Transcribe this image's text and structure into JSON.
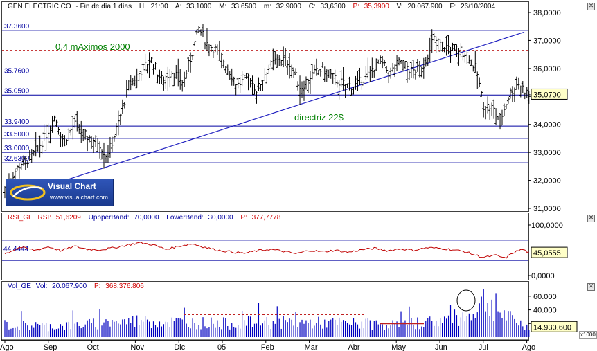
{
  "price_pane": {
    "header": {
      "security": "GEN ELECTRIC CO",
      "period": "Fin de día 1 días",
      "time_label": "H:",
      "time_value": "21:00",
      "open_label": "A:",
      "open_value": "33,1000",
      "high_label": "M:",
      "high_value": "33,6500",
      "low_label": "m:",
      "low_value": "32,9000",
      "close_label": "C:",
      "close_value": "33,6300",
      "p_label": "P:",
      "p_value": "35,3900",
      "vol_label": "V:",
      "vol_value": "20.067.900",
      "date_label": "F:",
      "date_value": "26/10/2004"
    },
    "annotation_max": "0.4 mAximos 2000",
    "annotation_trend": "directriz 22$",
    "last_price_tag": "35,0700"
  },
  "rsi_pane": {
    "header": {
      "name": "RSI_GE",
      "rsi_label": "RSI:",
      "rsi_value": "51,6209",
      "upper_label": "UppperBand:",
      "upper_value": "70,0000",
      "lower_label": "LowerBand:",
      "lower_value": "30,0000",
      "p_label": "P:",
      "p_value": "377,7778"
    },
    "last_value_tag": "45,0555"
  },
  "vol_pane": {
    "header": {
      "name": "Vol_GE",
      "vol_label": "Vol:",
      "vol_value": "20.067.900",
      "p_label": "P:",
      "p_value": "368.376.806"
    },
    "last_value_tag": "14.930.600",
    "unit_tag": "x1000"
  },
  "logo": {
    "title": "Visual Chart",
    "url": "www.visualchart.com"
  },
  "close_symbol": "✕",
  "colors": {
    "price_bars": "#000000",
    "levels": "#0000a0",
    "trendline": "#2020c0",
    "max_line": "#c02020",
    "annotation": "#008000",
    "rsi_line": "#c00000",
    "rsi_mid": "#00a000",
    "volume_bars": "#0000c0"
  },
  "chart_data": [
    {
      "type": "ohlc",
      "title": "GEN ELECTRIC CO",
      "x_axis_labels": [
        "Ago",
        "Sep",
        "Oct",
        "Nov",
        "Dic",
        "05",
        "Feb",
        "Mar",
        "Abr",
        "May",
        "Jun",
        "Jul",
        "Ago"
      ],
      "y_ticks": [
        "31,0000",
        "32,0000",
        "33,0000",
        "34,0000",
        "35,0000",
        "36,0000",
        "37,0000",
        "38,0000"
      ],
      "ylim": [
        31.0,
        38.0
      ],
      "horizontal_levels": [
        {
          "label": "37.3600",
          "value": 37.36
        },
        {
          "label": "35.7600",
          "value": 35.76
        },
        {
          "label": "35.0500",
          "value": 35.05
        },
        {
          "label": "33.9400",
          "value": 33.94
        },
        {
          "label": "33.5000",
          "value": 33.5
        },
        {
          "label": "33.0000",
          "value": 33.0
        },
        {
          "label": "32.6300",
          "value": 32.63
        }
      ],
      "max_line_value": 36.65,
      "trendline": {
        "start": [
          "Ago",
          32.05
        ],
        "end": [
          "Ago",
          37.3
        ]
      },
      "trend_points": [
        {
          "m": 0.0,
          "v": 31.75
        },
        {
          "m": 0.35,
          "v": 32.6
        },
        {
          "m": 0.6,
          "v": 32.8
        },
        {
          "m": 0.9,
          "v": 33.5
        },
        {
          "m": 1.15,
          "v": 34.3
        },
        {
          "m": 1.35,
          "v": 33.4
        },
        {
          "m": 1.6,
          "v": 34.0
        },
        {
          "m": 1.85,
          "v": 33.6
        },
        {
          "m": 2.15,
          "v": 33.4
        },
        {
          "m": 2.35,
          "v": 32.85
        },
        {
          "m": 2.6,
          "v": 34.0
        },
        {
          "m": 2.85,
          "v": 35.4
        },
        {
          "m": 3.1,
          "v": 35.85
        },
        {
          "m": 3.35,
          "v": 36.35
        },
        {
          "m": 3.6,
          "v": 35.6
        },
        {
          "m": 3.85,
          "v": 35.9
        },
        {
          "m": 4.1,
          "v": 35.5
        },
        {
          "m": 4.3,
          "v": 36.5
        },
        {
          "m": 4.45,
          "v": 37.45
        },
        {
          "m": 4.65,
          "v": 36.9
        },
        {
          "m": 4.9,
          "v": 36.6
        },
        {
          "m": 5.1,
          "v": 36.1
        },
        {
          "m": 5.35,
          "v": 35.4
        },
        {
          "m": 5.6,
          "v": 35.7
        },
        {
          "m": 5.8,
          "v": 35.2
        },
        {
          "m": 6.0,
          "v": 35.9
        },
        {
          "m": 6.3,
          "v": 36.4
        },
        {
          "m": 6.55,
          "v": 36.2
        },
        {
          "m": 6.8,
          "v": 35.3
        },
        {
          "m": 7.0,
          "v": 35.7
        },
        {
          "m": 7.3,
          "v": 36.0
        },
        {
          "m": 7.6,
          "v": 35.6
        },
        {
          "m": 7.85,
          "v": 35.4
        },
        {
          "m": 8.1,
          "v": 35.4
        },
        {
          "m": 8.35,
          "v": 35.8
        },
        {
          "m": 8.6,
          "v": 36.3
        },
        {
          "m": 8.85,
          "v": 35.8
        },
        {
          "m": 9.1,
          "v": 36.3
        },
        {
          "m": 9.35,
          "v": 35.9
        },
        {
          "m": 9.6,
          "v": 36.0
        },
        {
          "m": 9.85,
          "v": 37.05
        },
        {
          "m": 10.1,
          "v": 36.8
        },
        {
          "m": 10.4,
          "v": 36.7
        },
        {
          "m": 10.65,
          "v": 36.5
        },
        {
          "m": 10.85,
          "v": 35.9
        },
        {
          "m": 11.0,
          "v": 34.7
        },
        {
          "m": 11.2,
          "v": 34.6
        },
        {
          "m": 11.4,
          "v": 34.2
        },
        {
          "m": 11.6,
          "v": 35.1
        },
        {
          "m": 11.8,
          "v": 35.5
        },
        {
          "m": 12.05,
          "v": 35.07
        }
      ]
    },
    {
      "type": "line",
      "title": "RSI_GE",
      "y_ticks": [
        "0,0000",
        "45,0555",
        "100,0000"
      ],
      "ylim": [
        0,
        100
      ],
      "bands": [
        70,
        44.4444,
        30
      ],
      "mid_label": "44.4444",
      "mid_value": 44.4444,
      "trend_points": [
        {
          "m": 0.0,
          "v": 43
        },
        {
          "m": 0.35,
          "v": 56
        },
        {
          "m": 0.7,
          "v": 50
        },
        {
          "m": 1.0,
          "v": 57
        },
        {
          "m": 1.3,
          "v": 49
        },
        {
          "m": 1.6,
          "v": 58
        },
        {
          "m": 1.9,
          "v": 52
        },
        {
          "m": 2.2,
          "v": 51
        },
        {
          "m": 2.5,
          "v": 55
        },
        {
          "m": 2.8,
          "v": 60
        },
        {
          "m": 3.1,
          "v": 65
        },
        {
          "m": 3.4,
          "v": 61
        },
        {
          "m": 3.7,
          "v": 52
        },
        {
          "m": 4.0,
          "v": 58
        },
        {
          "m": 4.3,
          "v": 63
        },
        {
          "m": 4.6,
          "v": 56
        },
        {
          "m": 4.9,
          "v": 50
        },
        {
          "m": 5.2,
          "v": 47
        },
        {
          "m": 5.5,
          "v": 44
        },
        {
          "m": 5.8,
          "v": 49
        },
        {
          "m": 6.1,
          "v": 52
        },
        {
          "m": 6.4,
          "v": 48
        },
        {
          "m": 6.7,
          "v": 43
        },
        {
          "m": 7.0,
          "v": 50
        },
        {
          "m": 7.3,
          "v": 47
        },
        {
          "m": 7.6,
          "v": 50
        },
        {
          "m": 7.9,
          "v": 46
        },
        {
          "m": 8.2,
          "v": 51
        },
        {
          "m": 8.5,
          "v": 54
        },
        {
          "m": 8.8,
          "v": 49
        },
        {
          "m": 9.1,
          "v": 53
        },
        {
          "m": 9.4,
          "v": 50
        },
        {
          "m": 9.7,
          "v": 55
        },
        {
          "m": 10.0,
          "v": 54
        },
        {
          "m": 10.3,
          "v": 51
        },
        {
          "m": 10.6,
          "v": 47
        },
        {
          "m": 10.8,
          "v": 41
        },
        {
          "m": 11.0,
          "v": 36
        },
        {
          "m": 11.3,
          "v": 40
        },
        {
          "m": 11.5,
          "v": 34
        },
        {
          "m": 11.7,
          "v": 46
        },
        {
          "m": 11.9,
          "v": 52
        },
        {
          "m": 12.05,
          "v": 45.06
        }
      ]
    },
    {
      "type": "bar",
      "title": "Vol_GE",
      "y_ticks": [
        "20.000",
        "40.000",
        "60.000"
      ],
      "ylim": [
        0,
        70000
      ],
      "unit": "x1000",
      "avg_dashed_level": 33000,
      "highlight_level": 20000,
      "volume_levels": [
        {
          "m": 0.0,
          "v": 18000
        },
        {
          "m": 1.0,
          "v": 16000
        },
        {
          "m": 2.0,
          "v": 19000
        },
        {
          "m": 3.0,
          "v": 24000
        },
        {
          "m": 4.0,
          "v": 22000
        },
        {
          "m": 5.0,
          "v": 20000
        },
        {
          "m": 6.0,
          "v": 22000
        },
        {
          "m": 7.0,
          "v": 21000
        },
        {
          "m": 8.0,
          "v": 20000
        },
        {
          "m": 9.0,
          "v": 18000
        },
        {
          "m": 10.0,
          "v": 24000
        },
        {
          "m": 10.7,
          "v": 32000
        },
        {
          "m": 11.0,
          "v": 55000
        },
        {
          "m": 11.5,
          "v": 30000
        },
        {
          "m": 12.05,
          "v": 14930
        }
      ]
    }
  ]
}
